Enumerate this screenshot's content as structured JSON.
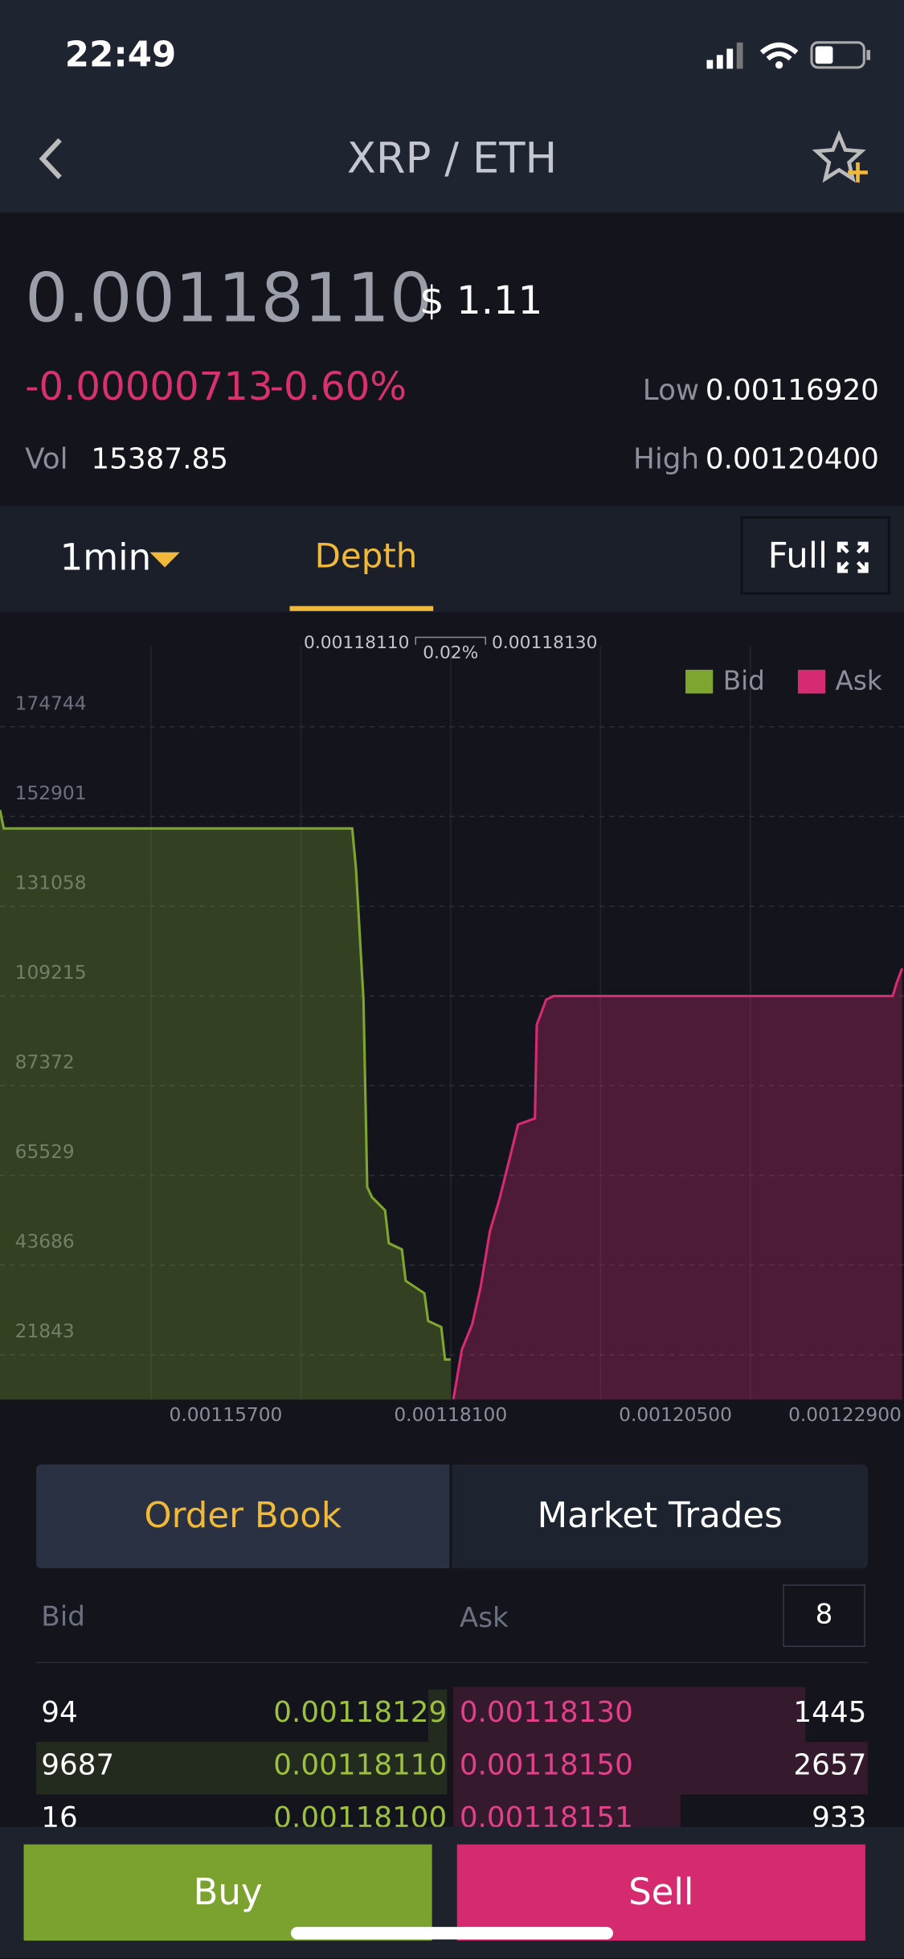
{
  "status_bar": {
    "time": "22:49"
  },
  "nav": {
    "title": "XRP / ETH"
  },
  "ticker": {
    "price": "0.00118110",
    "usd": "$ 1.11",
    "change": "-0.00000713",
    "change_pct": "-0.60%",
    "vol_label": "Vol",
    "vol": "15387.85",
    "low_label": "Low",
    "low": "0.00116920",
    "high_label": "High",
    "high": "0.00120400"
  },
  "tabs": {
    "interval": "1min",
    "depth": "Depth",
    "full": "Full"
  },
  "chart_data": {
    "type": "depth",
    "bid_price": "0.00118110",
    "spread": "0.02%",
    "ask_price": "0.00118130",
    "xlim": [
      0.0011329,
      0.0012294
    ],
    "ylim": [
      10950,
      194400
    ],
    "xticks": [
      {
        "value": 0.001157,
        "label": "0.00115700"
      },
      {
        "value": 0.001181,
        "label": "0.00118100"
      },
      {
        "value": 0.001205,
        "label": "0.00120500"
      },
      {
        "value": 0.001229,
        "label": "0.00122900"
      }
    ],
    "yticks": [
      21843,
      43686,
      65529,
      87372,
      109215,
      131058,
      152901,
      174744
    ],
    "grid": true,
    "legend": "top-right",
    "series": [
      {
        "name": "Bid",
        "color": "#7ea52f",
        "x": [
          0.0011329,
          0.0011333,
          0.0011705,
          0.0011709,
          0.0011717,
          0.0011721,
          0.0011726,
          0.001174,
          0.0011744,
          0.0011758,
          0.0011762,
          0.0011782,
          0.0011786,
          0.00118,
          0.0011804,
          0.001181
        ],
        "values": [
          154500,
          149970,
          149970,
          140200,
          108300,
          62700,
          60200,
          57000,
          49000,
          47500,
          39850,
          36800,
          30100,
          28600,
          20700,
          20700
        ]
      },
      {
        "name": "Ask",
        "color": "#d52b72",
        "x": [
          0.0011813,
          0.0011822,
          0.0011833,
          0.0011842,
          0.0011852,
          0.0011862,
          0.0011872,
          0.0011882,
          0.00119,
          0.0011902,
          0.0011912,
          0.001192,
          0.0012282,
          0.0012286,
          0.0012292
        ],
        "values": [
          11000,
          23100,
          29200,
          38300,
          52000,
          59600,
          68700,
          77900,
          79400,
          102200,
          108300,
          109200,
          109200,
          112300,
          115900
        ]
      }
    ]
  },
  "order_book": {
    "tabs": [
      "Order Book",
      "Market Trades"
    ],
    "bid_label": "Bid",
    "ask_label": "Ask",
    "precision": "8",
    "rows": [
      [
        "94",
        "0.00118129",
        "0.00118130",
        "1445"
      ],
      [
        "9687",
        "0.00118110",
        "0.00118150",
        "2657"
      ],
      [
        "16",
        "0.00118100",
        "0.00118151",
        "933"
      ]
    ]
  },
  "actions": {
    "buy": "Buy",
    "sell": "Sell"
  }
}
